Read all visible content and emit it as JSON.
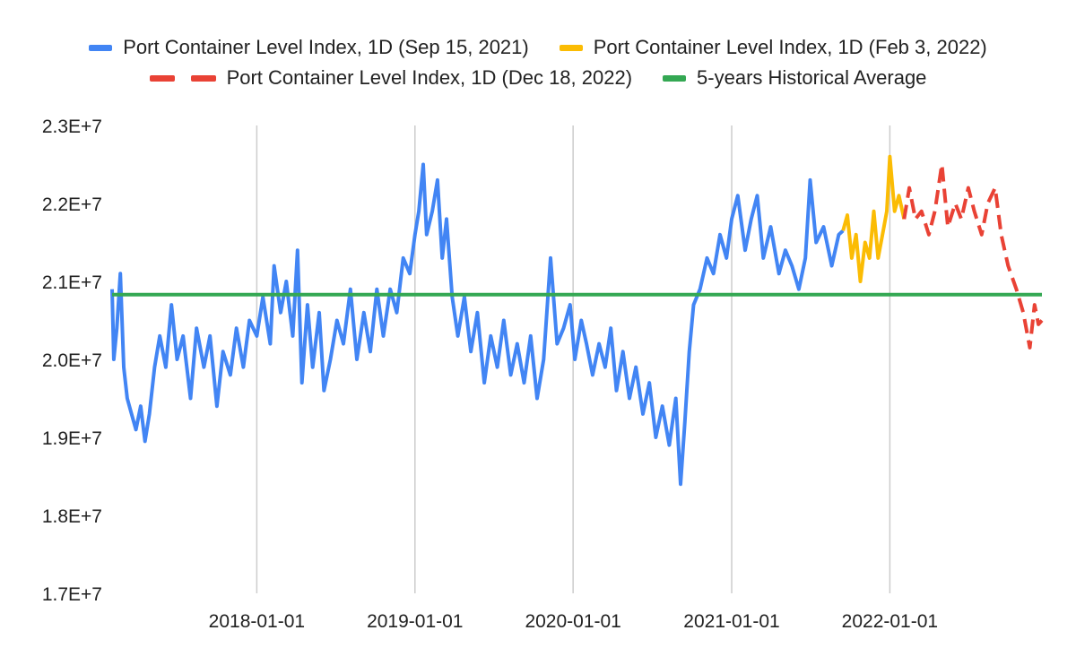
{
  "chart_data": {
    "type": "line",
    "title": "",
    "xlabel": "",
    "ylabel": "",
    "ylim": [
      17000000,
      23000000
    ],
    "xlim": [
      "2017-02-01",
      "2022-12-18"
    ],
    "yticks": [
      "1.7E+7",
      "1.8E+7",
      "1.9E+7",
      "2.0E+7",
      "2.1E+7",
      "2.2E+7",
      "2.3E+7"
    ],
    "ytick_values": [
      17000000,
      18000000,
      19000000,
      20000000,
      21000000,
      22000000,
      23000000
    ],
    "xticks": [
      "2018-01-01",
      "2019-01-01",
      "2020-01-01",
      "2021-01-01",
      "2022-01-01"
    ],
    "grid": "vertical",
    "legend_position": "top",
    "series": [
      {
        "name": "Port Container Level Index, 1D (Sep 15, 2021)",
        "color": "#4285f4",
        "style": "solid",
        "points": [
          [
            "2017-02-01",
            20900000
          ],
          [
            "2017-02-05",
            20000000
          ],
          [
            "2017-02-12",
            20400000
          ],
          [
            "2017-02-20",
            21100000
          ],
          [
            "2017-02-28",
            19900000
          ],
          [
            "2017-03-08",
            19500000
          ],
          [
            "2017-03-18",
            19300000
          ],
          [
            "2017-03-28",
            19100000
          ],
          [
            "2017-04-08",
            19400000
          ],
          [
            "2017-04-18",
            18950000
          ],
          [
            "2017-04-28",
            19300000
          ],
          [
            "2017-05-10",
            19900000
          ],
          [
            "2017-05-22",
            20300000
          ],
          [
            "2017-06-05",
            19900000
          ],
          [
            "2017-06-18",
            20700000
          ],
          [
            "2017-07-01",
            20000000
          ],
          [
            "2017-07-15",
            20300000
          ],
          [
            "2017-08-01",
            19500000
          ],
          [
            "2017-08-15",
            20400000
          ],
          [
            "2017-09-01",
            19900000
          ],
          [
            "2017-09-15",
            20300000
          ],
          [
            "2017-10-01",
            19400000
          ],
          [
            "2017-10-15",
            20100000
          ],
          [
            "2017-11-01",
            19800000
          ],
          [
            "2017-11-15",
            20400000
          ],
          [
            "2017-12-01",
            19900000
          ],
          [
            "2017-12-15",
            20500000
          ],
          [
            "2018-01-01",
            20300000
          ],
          [
            "2018-01-15",
            20800000
          ],
          [
            "2018-02-01",
            20200000
          ],
          [
            "2018-02-10",
            21200000
          ],
          [
            "2018-02-25",
            20600000
          ],
          [
            "2018-03-10",
            21000000
          ],
          [
            "2018-03-25",
            20300000
          ],
          [
            "2018-04-05",
            21400000
          ],
          [
            "2018-04-15",
            19700000
          ],
          [
            "2018-04-28",
            20700000
          ],
          [
            "2018-05-10",
            19900000
          ],
          [
            "2018-05-25",
            20600000
          ],
          [
            "2018-06-05",
            19600000
          ],
          [
            "2018-06-20",
            20000000
          ],
          [
            "2018-07-05",
            20500000
          ],
          [
            "2018-07-20",
            20200000
          ],
          [
            "2018-08-05",
            20900000
          ],
          [
            "2018-08-20",
            20000000
          ],
          [
            "2018-09-05",
            20600000
          ],
          [
            "2018-09-20",
            20100000
          ],
          [
            "2018-10-05",
            20900000
          ],
          [
            "2018-10-20",
            20300000
          ],
          [
            "2018-11-05",
            20900000
          ],
          [
            "2018-11-20",
            20600000
          ],
          [
            "2018-12-05",
            21300000
          ],
          [
            "2018-12-20",
            21100000
          ],
          [
            "2019-01-01",
            21600000
          ],
          [
            "2019-01-10",
            21900000
          ],
          [
            "2019-01-20",
            22500000
          ],
          [
            "2019-01-28",
            21600000
          ],
          [
            "2019-02-10",
            21900000
          ],
          [
            "2019-02-22",
            22300000
          ],
          [
            "2019-03-05",
            21300000
          ],
          [
            "2019-03-15",
            21800000
          ],
          [
            "2019-03-28",
            20800000
          ],
          [
            "2019-04-10",
            20300000
          ],
          [
            "2019-04-25",
            20800000
          ],
          [
            "2019-05-10",
            20100000
          ],
          [
            "2019-05-25",
            20600000
          ],
          [
            "2019-06-10",
            19700000
          ],
          [
            "2019-06-25",
            20300000
          ],
          [
            "2019-07-10",
            19900000
          ],
          [
            "2019-07-25",
            20500000
          ],
          [
            "2019-08-10",
            19800000
          ],
          [
            "2019-08-25",
            20200000
          ],
          [
            "2019-09-10",
            19700000
          ],
          [
            "2019-09-25",
            20300000
          ],
          [
            "2019-10-10",
            19500000
          ],
          [
            "2019-10-25",
            20000000
          ],
          [
            "2019-11-10",
            21300000
          ],
          [
            "2019-11-25",
            20200000
          ],
          [
            "2019-12-10",
            20400000
          ],
          [
            "2019-12-25",
            20700000
          ],
          [
            "2020-01-05",
            20000000
          ],
          [
            "2020-01-20",
            20500000
          ],
          [
            "2020-02-01",
            20200000
          ],
          [
            "2020-02-15",
            19800000
          ],
          [
            "2020-03-01",
            20200000
          ],
          [
            "2020-03-15",
            19900000
          ],
          [
            "2020-03-28",
            20400000
          ],
          [
            "2020-04-10",
            19600000
          ],
          [
            "2020-04-25",
            20100000
          ],
          [
            "2020-05-10",
            19500000
          ],
          [
            "2020-05-25",
            19900000
          ],
          [
            "2020-06-10",
            19300000
          ],
          [
            "2020-06-25",
            19700000
          ],
          [
            "2020-07-10",
            19000000
          ],
          [
            "2020-07-25",
            19400000
          ],
          [
            "2020-08-10",
            18900000
          ],
          [
            "2020-08-25",
            19500000
          ],
          [
            "2020-09-05",
            18400000
          ],
          [
            "2020-09-15",
            19200000
          ],
          [
            "2020-09-25",
            20100000
          ],
          [
            "2020-10-05",
            20700000
          ],
          [
            "2020-10-20",
            20900000
          ],
          [
            "2020-11-05",
            21300000
          ],
          [
            "2020-11-20",
            21100000
          ],
          [
            "2020-12-05",
            21600000
          ],
          [
            "2020-12-20",
            21300000
          ],
          [
            "2021-01-01",
            21800000
          ],
          [
            "2021-01-15",
            22100000
          ],
          [
            "2021-02-01",
            21400000
          ],
          [
            "2021-02-15",
            21800000
          ],
          [
            "2021-03-01",
            22100000
          ],
          [
            "2021-03-15",
            21300000
          ],
          [
            "2021-04-01",
            21700000
          ],
          [
            "2021-04-20",
            21100000
          ],
          [
            "2021-05-05",
            21400000
          ],
          [
            "2021-05-20",
            21200000
          ],
          [
            "2021-06-05",
            20900000
          ],
          [
            "2021-06-20",
            21300000
          ],
          [
            "2021-07-01",
            22300000
          ],
          [
            "2021-07-15",
            21500000
          ],
          [
            "2021-08-01",
            21700000
          ],
          [
            "2021-08-20",
            21200000
          ],
          [
            "2021-09-05",
            21600000
          ],
          [
            "2021-09-15",
            21650000
          ]
        ]
      },
      {
        "name": "Port Container Level Index, 1D (Feb 3, 2022)",
        "color": "#fbbc04",
        "style": "solid",
        "points": [
          [
            "2021-09-15",
            21650000
          ],
          [
            "2021-09-25",
            21850000
          ],
          [
            "2021-10-05",
            21300000
          ],
          [
            "2021-10-15",
            21600000
          ],
          [
            "2021-10-25",
            21000000
          ],
          [
            "2021-11-05",
            21500000
          ],
          [
            "2021-11-15",
            21300000
          ],
          [
            "2021-11-25",
            21900000
          ],
          [
            "2021-12-05",
            21300000
          ],
          [
            "2021-12-15",
            21600000
          ],
          [
            "2021-12-25",
            21900000
          ],
          [
            "2022-01-01",
            22600000
          ],
          [
            "2022-01-12",
            21900000
          ],
          [
            "2022-01-22",
            22100000
          ],
          [
            "2022-02-03",
            21800000
          ]
        ]
      },
      {
        "name": "Port Container Level Index, 1D (Dec 18, 2022)",
        "color": "#e94235",
        "style": "dashed",
        "points": [
          [
            "2022-02-03",
            21800000
          ],
          [
            "2022-02-15",
            22200000
          ],
          [
            "2022-03-01",
            21800000
          ],
          [
            "2022-03-15",
            21900000
          ],
          [
            "2022-04-01",
            21600000
          ],
          [
            "2022-04-15",
            21900000
          ],
          [
            "2022-05-01",
            22500000
          ],
          [
            "2022-05-15",
            21700000
          ],
          [
            "2022-06-01",
            22000000
          ],
          [
            "2022-06-15",
            21800000
          ],
          [
            "2022-07-01",
            22200000
          ],
          [
            "2022-07-15",
            21900000
          ],
          [
            "2022-08-01",
            21600000
          ],
          [
            "2022-08-15",
            22000000
          ],
          [
            "2022-09-01",
            22200000
          ],
          [
            "2022-09-15",
            21600000
          ],
          [
            "2022-10-01",
            21200000
          ],
          [
            "2022-10-20",
            20900000
          ],
          [
            "2022-11-05",
            20600000
          ],
          [
            "2022-11-20",
            20150000
          ],
          [
            "2022-12-01",
            20700000
          ],
          [
            "2022-12-10",
            20450000
          ],
          [
            "2022-12-18",
            20500000
          ]
        ]
      },
      {
        "name": "5-years Historical Average",
        "color": "#34a853",
        "style": "solid",
        "points": [
          [
            "2017-02-01",
            20830000
          ],
          [
            "2022-12-18",
            20830000
          ]
        ]
      }
    ]
  }
}
